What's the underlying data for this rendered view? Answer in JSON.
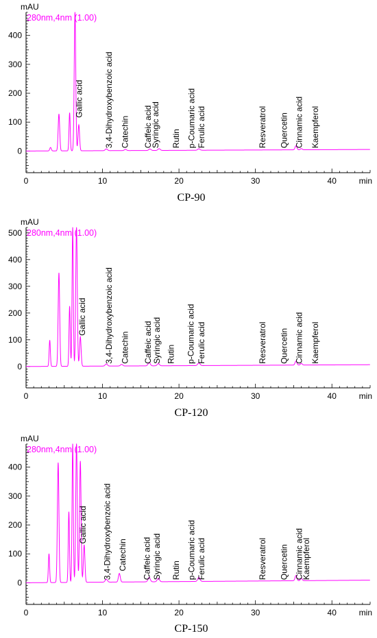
{
  "figure": {
    "trace_color": "#ff00ff",
    "axis_color": "#000000"
  },
  "chart_data": [
    {
      "type": "line",
      "caption": "CP-90",
      "ylabel": "mAU",
      "xlabel": "min",
      "channel_label": "280nm,4nm (1.00)",
      "xlim": [
        0,
        45
      ],
      "ylim": [
        -75,
        480
      ],
      "xticks": [
        0,
        10,
        20,
        30,
        40
      ],
      "yticks": [
        0,
        100,
        200,
        300,
        400
      ],
      "baseline_slope": 0.12,
      "peaks": [
        {
          "t": 3.2,
          "h": 12,
          "w": 0.1
        },
        {
          "t": 4.3,
          "h": 128,
          "w": 0.1
        },
        {
          "t": 5.7,
          "h": 132,
          "w": 0.08
        },
        {
          "t": 6.4,
          "h": 480,
          "w": 0.1
        },
        {
          "t": 6.9,
          "h": 90,
          "w": 0.1
        },
        {
          "t": 10.5,
          "h": 6,
          "w": 0.15
        },
        {
          "t": 13.0,
          "h": 4,
          "w": 0.15
        },
        {
          "t": 16.2,
          "h": 5,
          "w": 0.15
        },
        {
          "t": 17.4,
          "h": 6,
          "w": 0.15
        },
        {
          "t": 22.6,
          "h": 5,
          "w": 0.15
        },
        {
          "t": 35.3,
          "h": 14,
          "w": 0.12
        },
        {
          "t": 36.0,
          "h": 4,
          "w": 0.12
        }
      ],
      "annotations": [
        {
          "text": "Gallic acid",
          "x": 7.3,
          "y": 115
        },
        {
          "text": "3,4-Dihydroxybenzoic acid",
          "x": 11.2,
          "y": 10
        },
        {
          "text": "Catechin",
          "x": 13.3,
          "y": 10
        },
        {
          "text": "Caffeic acid",
          "x": 16.3,
          "y": 10
        },
        {
          "text": "Syringic acid",
          "x": 17.3,
          "y": 10
        },
        {
          "text": "Rutin",
          "x": 20.0,
          "y": 10
        },
        {
          "text": "p-Coumaric acid",
          "x": 22.0,
          "y": 10
        },
        {
          "text": "Ferulic acid",
          "x": 23.3,
          "y": 10
        },
        {
          "text": "Resveratrol",
          "x": 31.3,
          "y": 10
        },
        {
          "text": "Quercetin",
          "x": 34.1,
          "y": 10
        },
        {
          "text": "Cinnamic acid",
          "x": 36.1,
          "y": 10
        },
        {
          "text": "Kaempferol",
          "x": 38.2,
          "y": 10
        }
      ]
    },
    {
      "type": "line",
      "caption": "CP-120",
      "ylabel": "mAU",
      "xlabel": "min",
      "channel_label": "280nm,4nm (1.00)",
      "xlim": [
        0,
        45
      ],
      "ylim": [
        -80,
        520
      ],
      "xticks": [
        0,
        10,
        20,
        30,
        40
      ],
      "yticks": [
        0,
        100,
        200,
        300,
        400,
        500
      ],
      "baseline_slope": 0.15,
      "peaks": [
        {
          "t": 3.1,
          "h": 98,
          "w": 0.08
        },
        {
          "t": 4.3,
          "h": 350,
          "w": 0.1
        },
        {
          "t": 5.7,
          "h": 225,
          "w": 0.08
        },
        {
          "t": 6.1,
          "h": 520,
          "w": 0.08
        },
        {
          "t": 6.6,
          "h": 520,
          "w": 0.1
        },
        {
          "t": 7.1,
          "h": 110,
          "w": 0.1
        },
        {
          "t": 10.5,
          "h": 8,
          "w": 0.15
        },
        {
          "t": 12.5,
          "h": 6,
          "w": 0.15
        },
        {
          "t": 16.1,
          "h": 12,
          "w": 0.15
        },
        {
          "t": 17.3,
          "h": 8,
          "w": 0.15
        },
        {
          "t": 22.6,
          "h": 10,
          "w": 0.15
        },
        {
          "t": 35.3,
          "h": 15,
          "w": 0.12
        },
        {
          "t": 36.0,
          "h": 6,
          "w": 0.12
        }
      ],
      "annotations": [
        {
          "text": "Gallic acid",
          "x": 7.7,
          "y": 115
        },
        {
          "text": "3,4-Dihydroxybenzoic acid",
          "x": 11.2,
          "y": 10
        },
        {
          "text": "Catechin",
          "x": 13.3,
          "y": 10
        },
        {
          "text": "Caffeic acid",
          "x": 16.3,
          "y": 10
        },
        {
          "text": "Syringic acid",
          "x": 17.5,
          "y": 10
        },
        {
          "text": "Rutin",
          "x": 19.3,
          "y": 10
        },
        {
          "text": "p-Coumaric acid",
          "x": 21.9,
          "y": 10
        },
        {
          "text": "Ferulic acid",
          "x": 23.3,
          "y": 10
        },
        {
          "text": "Resveratrol",
          "x": 31.3,
          "y": 10
        },
        {
          "text": "Quercetin",
          "x": 34.1,
          "y": 10
        },
        {
          "text": "Cinnamic acid",
          "x": 36.1,
          "y": 10
        },
        {
          "text": "Kaempferol",
          "x": 38.2,
          "y": 10
        }
      ]
    },
    {
      "type": "line",
      "caption": "CP-150",
      "ylabel": "mAU",
      "xlabel": "min",
      "channel_label": "280nm,4nm (1.00)",
      "xlim": [
        0,
        45
      ],
      "ylim": [
        -75,
        480
      ],
      "xticks": [
        0,
        10,
        20,
        30,
        40
      ],
      "yticks": [
        0,
        100,
        200,
        300,
        400
      ],
      "baseline_slope": 0.2,
      "peaks": [
        {
          "t": 3.0,
          "h": 100,
          "w": 0.08
        },
        {
          "t": 4.2,
          "h": 415,
          "w": 0.1
        },
        {
          "t": 5.6,
          "h": 245,
          "w": 0.08
        },
        {
          "t": 6.1,
          "h": 480,
          "w": 0.08
        },
        {
          "t": 6.6,
          "h": 480,
          "w": 0.1
        },
        {
          "t": 7.1,
          "h": 420,
          "w": 0.1
        },
        {
          "t": 7.6,
          "h": 130,
          "w": 0.1
        },
        {
          "t": 10.5,
          "h": 10,
          "w": 0.15
        },
        {
          "t": 12.2,
          "h": 30,
          "w": 0.12
        },
        {
          "t": 16.1,
          "h": 15,
          "w": 0.15
        },
        {
          "t": 17.3,
          "h": 12,
          "w": 0.15
        },
        {
          "t": 22.6,
          "h": 14,
          "w": 0.15
        },
        {
          "t": 35.3,
          "h": 18,
          "w": 0.12
        },
        {
          "t": 36.0,
          "h": 8,
          "w": 0.12
        }
      ],
      "annotations": [
        {
          "text": "Gallic acid",
          "x": 7.8,
          "y": 135
        },
        {
          "text": "3,4-Dihydroxybenzoic acid",
          "x": 11.0,
          "y": 10
        },
        {
          "text": "Catechin",
          "x": 13.0,
          "y": 40
        },
        {
          "text": "Caffeic acid",
          "x": 16.2,
          "y": 10
        },
        {
          "text": "Syringic acid",
          "x": 17.5,
          "y": 10
        },
        {
          "text": "Rutin",
          "x": 20.0,
          "y": 10
        },
        {
          "text": "p-Coumaric acid",
          "x": 22.0,
          "y": 10
        },
        {
          "text": "Ferulic acid",
          "x": 23.3,
          "y": 10
        },
        {
          "text": "Resveratrol",
          "x": 31.3,
          "y": 10
        },
        {
          "text": "Quercetin",
          "x": 34.1,
          "y": 10
        },
        {
          "text": "Cinnamic acid",
          "x": 36.1,
          "y": 10
        },
        {
          "text": "Kaempferol",
          "x": 37.0,
          "y": 10
        }
      ]
    }
  ]
}
